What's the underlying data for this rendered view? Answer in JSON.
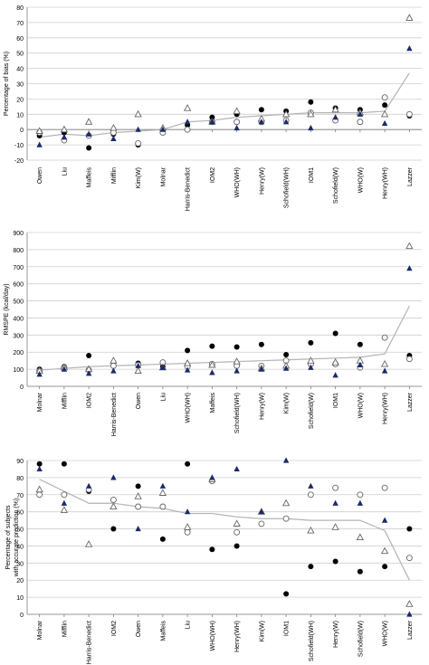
{
  "chart_data": [
    {
      "type": "scatter",
      "ylabel": "Percentage of bias (%)",
      "ylim": [
        -20,
        80
      ],
      "yticks": [
        -20,
        -10,
        0,
        10,
        20,
        30,
        40,
        50,
        60,
        70,
        80
      ],
      "grid": true,
      "legend": "none",
      "categories": [
        "Owen",
        "Liu",
        "Maffeis",
        "Mifflin",
        "Kim(W)",
        "Molnar",
        "Harris-Benedict",
        "IOM2",
        "WHO(WH)",
        "Henry(W)",
        "Schofield(WH)",
        "IOM1",
        "Schofield(W)",
        "WHO(W)",
        "Henry(WH)",
        "Lazzer"
      ],
      "series": [
        {
          "marker": "filled-circle",
          "values": [
            -4,
            -2,
            -12,
            -3,
            -10,
            -1,
            3,
            8,
            10,
            13,
            12,
            18,
            14,
            13,
            16,
            9
          ]
        },
        {
          "marker": "open-circle",
          "values": [
            -2,
            -7,
            -4,
            -2,
            -9,
            -2,
            0,
            5,
            5,
            5,
            6,
            11,
            6,
            5,
            21,
            10
          ]
        },
        {
          "marker": "open-triangle",
          "values": [
            -1,
            0,
            5,
            1,
            10,
            1,
            14,
            5,
            12,
            7,
            10,
            10,
            13,
            11,
            10,
            73
          ]
        },
        {
          "marker": "filled-triangle",
          "values": [
            -10,
            -5,
            -3,
            -6,
            0,
            0,
            5,
            5,
            1,
            5,
            5,
            1,
            8,
            10,
            4,
            53
          ]
        }
      ],
      "trend": [
        -5,
        -3,
        -4,
        -2,
        -1,
        0,
        5,
        6,
        8,
        9,
        10,
        11,
        11,
        11,
        12,
        37
      ]
    },
    {
      "type": "scatter",
      "ylabel": "RMSPE (kcal/day)",
      "ylim": [
        0,
        900
      ],
      "yticks": [
        0,
        100,
        200,
        300,
        400,
        500,
        600,
        700,
        800,
        900
      ],
      "grid": true,
      "legend": "none",
      "categories": [
        "Molnar",
        "Mifflin",
        "IOM2",
        "Harris-Benedict",
        "Owen",
        "Liu",
        "WHO(WH)",
        "Maffeis",
        "Schofield(WH)",
        "Henry(W)",
        "Kim(W)",
        "Schofield(W)",
        "IOM1",
        "WHO(W)",
        "Henry(WH)",
        "Lazzer"
      ],
      "series": [
        {
          "marker": "filled-circle",
          "values": [
            100,
            115,
            180,
            140,
            135,
            115,
            210,
            235,
            230,
            245,
            185,
            255,
            310,
            245,
            285,
            180
          ]
        },
        {
          "marker": "open-circle",
          "values": [
            90,
            110,
            95,
            120,
            125,
            140,
            115,
            130,
            120,
            120,
            150,
            130,
            130,
            110,
            285,
            160
          ]
        },
        {
          "marker": "open-triangle",
          "values": [
            90,
            110,
            100,
            150,
            90,
            110,
            135,
            125,
            145,
            105,
            120,
            150,
            140,
            150,
            130,
            820
          ]
        },
        {
          "marker": "filled-triangle",
          "values": [
            70,
            100,
            75,
            90,
            120,
            110,
            95,
            80,
            90,
            100,
            105,
            110,
            65,
            125,
            90,
            690
          ]
        }
      ],
      "trend": [
        95,
        105,
        115,
        120,
        125,
        130,
        135,
        140,
        145,
        150,
        155,
        160,
        165,
        170,
        190,
        470
      ]
    },
    {
      "type": "scatter",
      "ylabel": "Percentage of subjects with accurate prediction (%)",
      "ylim": [
        0,
        90
      ],
      "yticks": [
        0,
        10,
        20,
        30,
        40,
        50,
        60,
        70,
        80,
        90
      ],
      "grid": true,
      "legend": "none",
      "categories": [
        "Molnar",
        "Mifflin",
        "Harris-Benedict",
        "IOM2",
        "Owen",
        "Maffeis",
        "Liu",
        "WHO(WH)",
        "Henry(WH)",
        "Kim(W)",
        "IOM1",
        "Schofield(WH)",
        "Henry(W)",
        "Schofield(W)",
        "WHO(W)",
        "Lazzer"
      ],
      "series": [
        {
          "marker": "filled-circle",
          "values": [
            88,
            88,
            72,
            50,
            75,
            44,
            88,
            38,
            40,
            53,
            12,
            28,
            31,
            25,
            28,
            50
          ]
        },
        {
          "marker": "open-circle",
          "values": [
            70,
            70,
            73,
            67,
            63,
            63,
            48,
            78,
            48,
            53,
            56,
            70,
            74,
            70,
            74,
            33
          ]
        },
        {
          "marker": "open-triangle",
          "values": [
            73,
            61,
            41,
            63,
            69,
            71,
            51,
            79,
            53,
            60,
            65,
            49,
            51,
            45,
            37,
            6
          ]
        },
        {
          "marker": "filled-triangle",
          "values": [
            85,
            65,
            75,
            80,
            50,
            75,
            60,
            80,
            85,
            60,
            90,
            75,
            65,
            65,
            55,
            0
          ]
        }
      ],
      "trend": [
        79,
        72,
        65,
        65,
        63,
        62,
        59,
        59,
        57,
        56,
        56,
        55,
        55,
        55,
        49,
        20
      ]
    }
  ]
}
